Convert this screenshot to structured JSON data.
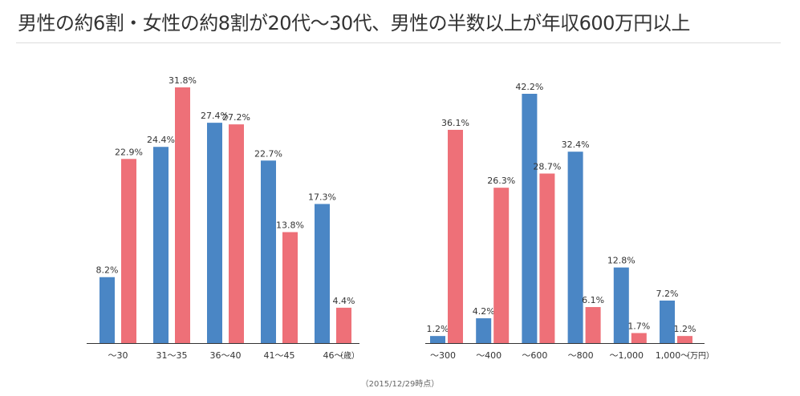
{
  "header": {
    "title": "男性の約6割・女性の約8割が20代〜30代、男性の半数以上が年収600万円以上"
  },
  "footnote": "（2015/12/29時点）",
  "colors": {
    "male": "#4a86c5",
    "female": "#ee7078",
    "axis": "#333333"
  },
  "chart_data": [
    {
      "type": "bar",
      "categories": [
        "〜30",
        "31〜35",
        "36〜40",
        "41〜45",
        "46〜"
      ],
      "unit_label": "（歳）",
      "series": [
        {
          "values": [
            8.2,
            24.4,
            27.4,
            22.7,
            17.3
          ],
          "labels": [
            "8.2%",
            "24.4%",
            "27.4%",
            "22.7%",
            "17.3%"
          ]
        },
        {
          "values": [
            22.9,
            31.8,
            27.2,
            13.8,
            4.4
          ],
          "labels": [
            "22.9%",
            "31.8%",
            "27.2%",
            "13.8%",
            "4.4%"
          ]
        }
      ],
      "ylim": [
        0,
        32
      ],
      "grid": false,
      "legend": "none"
    },
    {
      "type": "bar",
      "categories": [
        "〜300",
        "〜400",
        "〜600",
        "〜800",
        "〜1,000",
        "1,000〜"
      ],
      "unit_label": "（万円）",
      "series": [
        {
          "values": [
            1.2,
            4.2,
            42.2,
            32.4,
            12.8,
            7.2
          ],
          "labels": [
            "1.2%",
            "4.2%",
            "42.2%",
            "32.4%",
            "12.8%",
            "7.2%"
          ]
        },
        {
          "values": [
            36.1,
            26.3,
            28.7,
            6.1,
            1.7,
            1.2
          ],
          "labels": [
            "36.1%",
            "26.3%",
            "28.7%",
            "6.1%",
            "1.7%",
            "1.2%"
          ]
        }
      ],
      "ylim": [
        0,
        42.2
      ],
      "grid": false,
      "legend": "none"
    }
  ]
}
